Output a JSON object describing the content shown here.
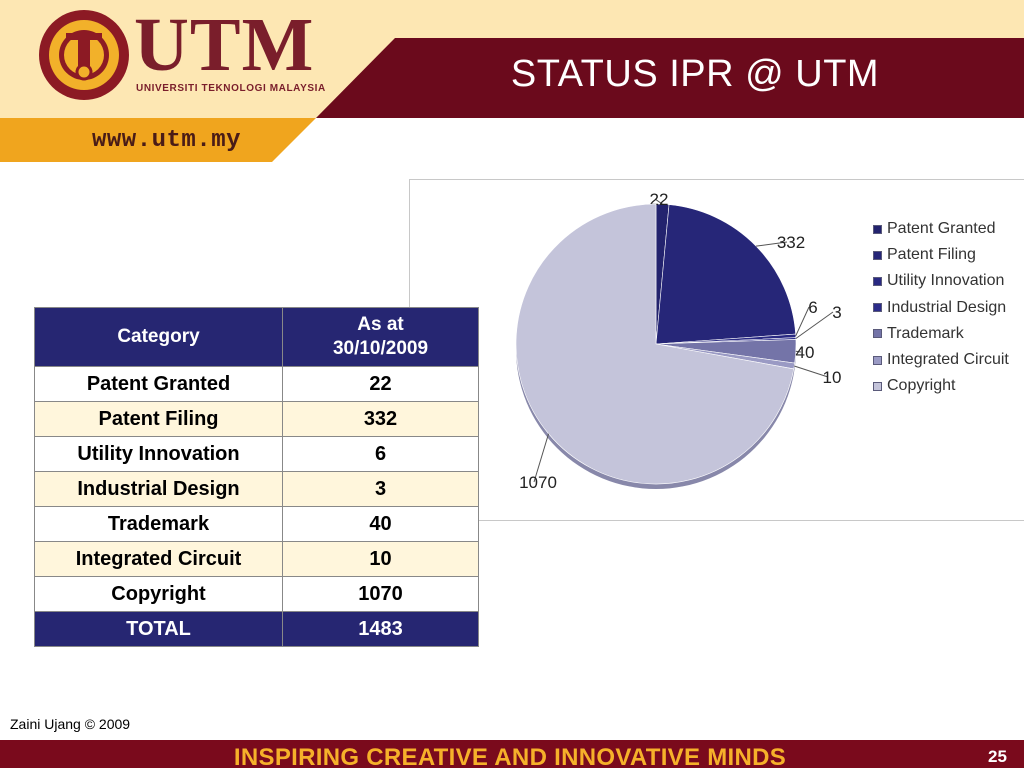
{
  "header": {
    "title": "STATUS IPR @ UTM",
    "brand_name": "UTM",
    "brand_subtitle": "UNIVERSITI TEKNOLOGI MALAYSIA",
    "website": "www.utm.my",
    "colors": {
      "cream": "#fde7b3",
      "maroon": "#6b0a1c",
      "orange": "#f0a51e",
      "brand": "#7a1e2b"
    }
  },
  "table": {
    "headers": {
      "category": "Category",
      "as_at_line1": "As at",
      "as_at_line2": "30/10/2009"
    },
    "rows": [
      {
        "category": "Patent Granted",
        "value": "22"
      },
      {
        "category": "Patent Filing",
        "value": "332"
      },
      {
        "category": "Utility Innovation",
        "value": "6"
      },
      {
        "category": "Industrial Design",
        "value": "3"
      },
      {
        "category": "Trademark",
        "value": "40"
      },
      {
        "category": "Integrated Circuit",
        "value": "10"
      },
      {
        "category": "Copyright",
        "value": "1070"
      }
    ],
    "total_label": "TOTAL",
    "total_value": "1483"
  },
  "chart_data": {
    "type": "pie",
    "categories": [
      "Patent Granted",
      "Patent Filing",
      "Utility Innovation",
      "Industrial Design",
      "Trademark",
      "Integrated Circuit",
      "Copyright"
    ],
    "values": [
      22,
      332,
      6,
      3,
      40,
      10,
      1070
    ],
    "data_labels": [
      "22",
      "332",
      "6",
      "3",
      "40",
      "10",
      "1070"
    ],
    "colors": [
      "#23236e",
      "#262678",
      "#292982",
      "#2c2c8a",
      "#7474a8",
      "#9a9ac4",
      "#c4c4da"
    ],
    "title": "",
    "legend_position": "right"
  },
  "footer": {
    "author": "Zaini Ujang © 2009",
    "slogan": "INSPIRING CREATIVE AND INNOVATIVE MINDS",
    "page_number": "25"
  }
}
